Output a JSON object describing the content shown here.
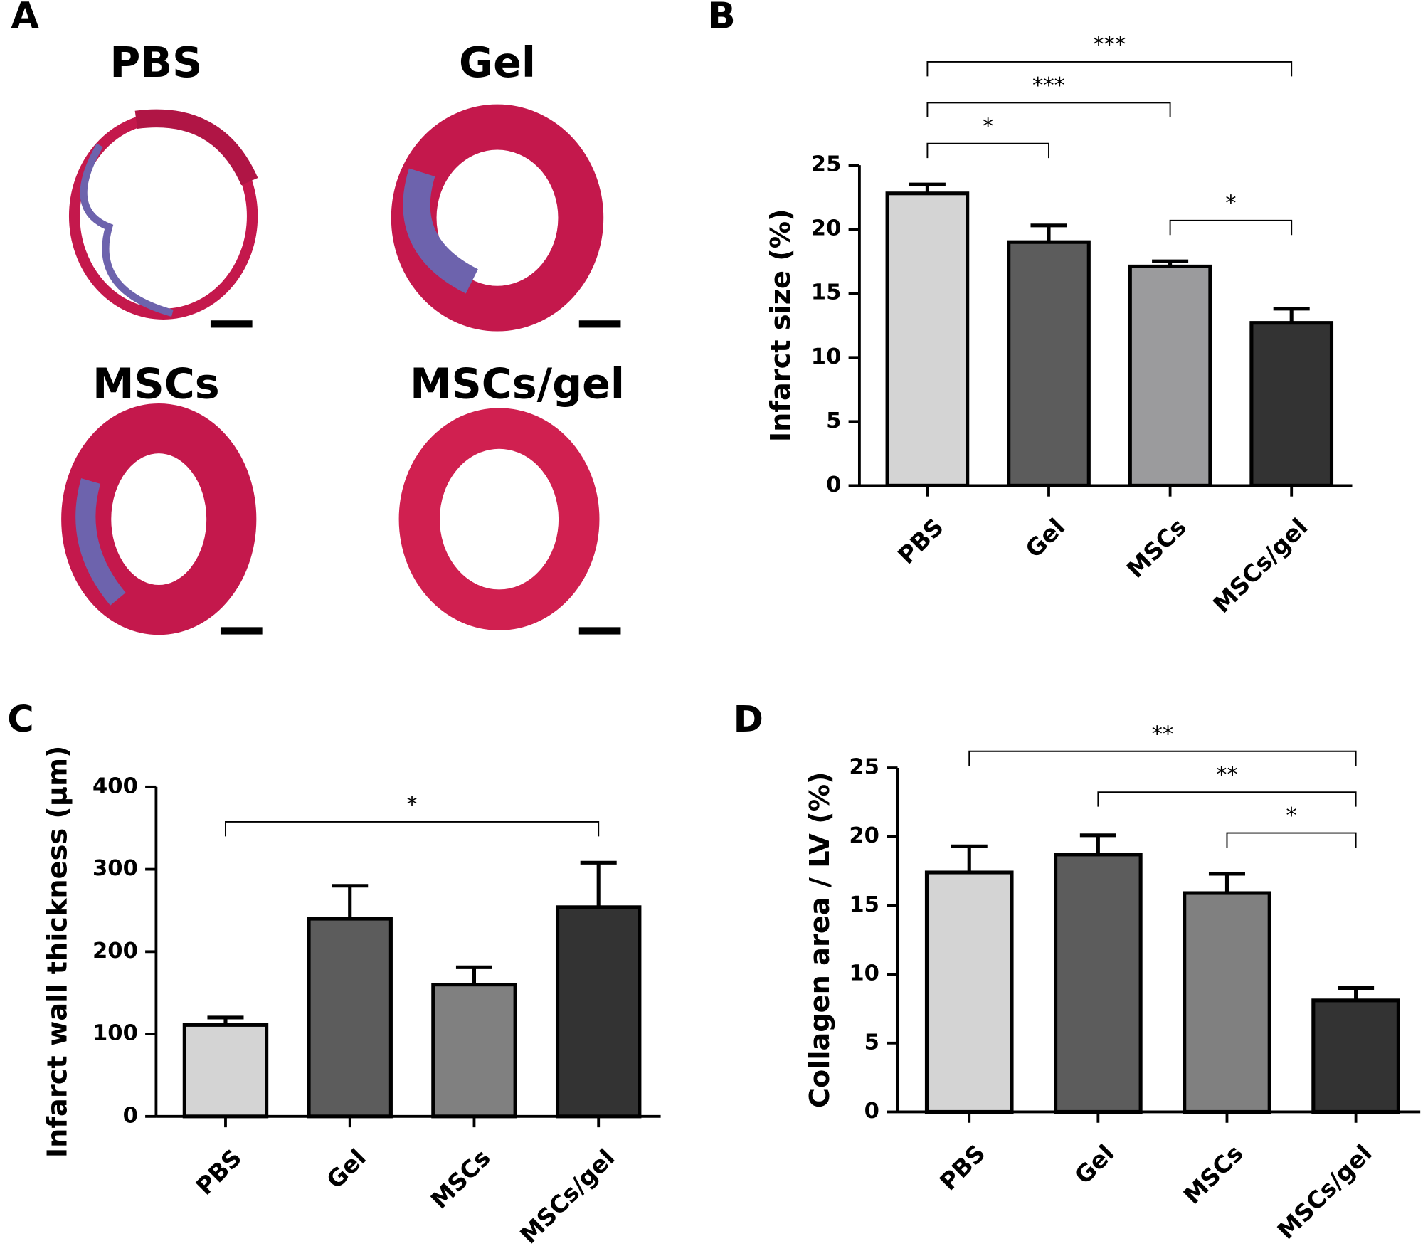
{
  "panel_a": {
    "label": "A",
    "titles": [
      "PBS",
      "Gel",
      "MSCs",
      "MSCs/gel"
    ]
  },
  "chart_data": [
    {
      "type": "bar",
      "panel_label": "B",
      "y_label": "Infarct size (%)",
      "categories": [
        "PBS",
        "Gel",
        "MSCs",
        "MSCs/gel"
      ],
      "values": [
        22.8,
        19.0,
        17.1,
        12.7
      ],
      "errors": [
        0.7,
        1.3,
        0.4,
        1.1
      ],
      "colors": [
        "#d4d4d4",
        "#5c5c5c",
        "#9b9b9d",
        "#333333"
      ],
      "ylim": [
        0,
        25
      ],
      "yticks": [
        0,
        5,
        10,
        15,
        20,
        25
      ],
      "significance": [
        {
          "pair": [
            "PBS",
            "MSCs/gel"
          ],
          "label": "***"
        },
        {
          "pair": [
            "PBS",
            "MSCs"
          ],
          "label": "***"
        },
        {
          "pair": [
            "PBS",
            "Gel"
          ],
          "label": "*"
        },
        {
          "pair": [
            "MSCs",
            "MSCs/gel"
          ],
          "label": "*"
        }
      ]
    },
    {
      "type": "bar",
      "panel_label": "C",
      "y_label": "Infarct wall thickness (μm)",
      "categories": [
        "PBS",
        "Gel",
        "MSCs",
        "MSCs/gel"
      ],
      "values": [
        111,
        240,
        160,
        254
      ],
      "errors": [
        9,
        40,
        21,
        54
      ],
      "colors": [
        "#d4d4d4",
        "#5c5c5c",
        "#808080",
        "#333333"
      ],
      "ylim": [
        0,
        400
      ],
      "yticks": [
        0,
        100,
        200,
        300,
        400
      ],
      "significance": [
        {
          "pair": [
            "PBS",
            "MSCs/gel"
          ],
          "label": "*"
        }
      ]
    },
    {
      "type": "bar",
      "panel_label": "D",
      "y_label": "Collagen area / LV (%)",
      "categories": [
        "PBS",
        "Gel",
        "MSCs",
        "MSCs/gel"
      ],
      "values": [
        17.4,
        18.7,
        15.9,
        8.1
      ],
      "errors": [
        1.9,
        1.4,
        1.4,
        0.9
      ],
      "colors": [
        "#d4d4d4",
        "#5c5c5c",
        "#808080",
        "#333333"
      ],
      "ylim": [
        0,
        25
      ],
      "yticks": [
        0,
        5,
        10,
        15,
        20,
        25
      ],
      "significance": [
        {
          "pair": [
            "PBS",
            "MSCs/gel"
          ],
          "label": "**"
        },
        {
          "pair": [
            "Gel",
            "MSCs/gel"
          ],
          "label": "**"
        },
        {
          "pair": [
            "MSCs",
            "MSCs/gel"
          ],
          "label": "*"
        }
      ]
    }
  ]
}
